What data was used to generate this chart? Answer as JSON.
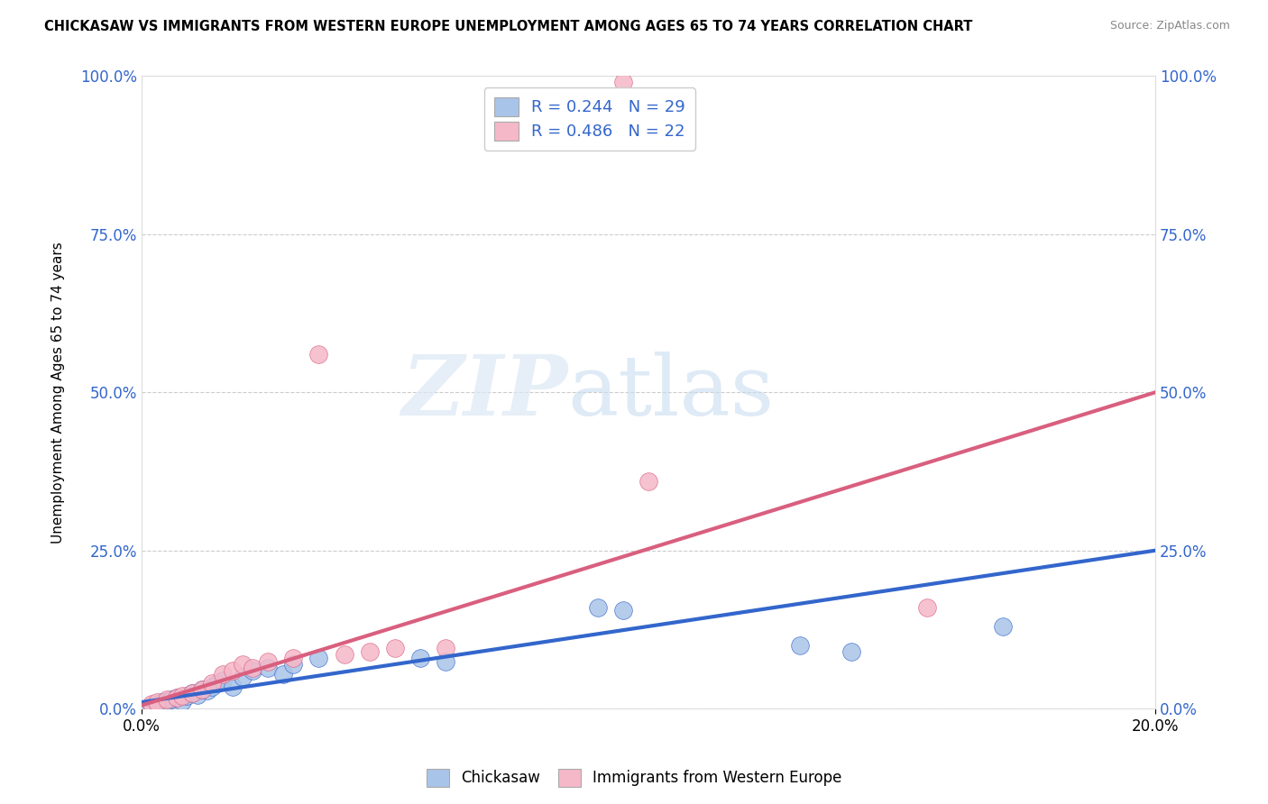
{
  "title": "CHICKASAW VS IMMIGRANTS FROM WESTERN EUROPE UNEMPLOYMENT AMONG AGES 65 TO 74 YEARS CORRELATION CHART",
  "source": "Source: ZipAtlas.com",
  "ylabel": "Unemployment Among Ages 65 to 74 years",
  "legend_label1": "Chickasaw",
  "legend_label2": "Immigrants from Western Europe",
  "R1": 0.244,
  "N1": 29,
  "R2": 0.486,
  "N2": 22,
  "color_blue": "#a8c4e8",
  "color_pink": "#f5b8c8",
  "color_blue_line": "#3366cc",
  "color_pink_line": "#d95f7f",
  "color_axis_text": "#3366cc",
  "watermark_zip": "ZIP",
  "watermark_atlas": "atlas",
  "xlim": [
    0.0,
    0.2
  ],
  "ylim": [
    0.0,
    1.0
  ],
  "yticks": [
    0.0,
    0.25,
    0.5,
    0.75,
    1.0
  ],
  "xticks": [
    0.0,
    0.2
  ],
  "blue_scatter_x": [
    0.002,
    0.003,
    0.004,
    0.005,
    0.006,
    0.007,
    0.008,
    0.009,
    0.01,
    0.011,
    0.012,
    0.013,
    0.014,
    0.015,
    0.016,
    0.018,
    0.02,
    0.022,
    0.025,
    0.028,
    0.03,
    0.035,
    0.055,
    0.06,
    0.09,
    0.095,
    0.13,
    0.14,
    0.17
  ],
  "blue_scatter_y": [
    0.005,
    0.008,
    0.01,
    0.012,
    0.015,
    0.018,
    0.012,
    0.02,
    0.025,
    0.022,
    0.03,
    0.028,
    0.035,
    0.04,
    0.045,
    0.035,
    0.05,
    0.06,
    0.065,
    0.055,
    0.07,
    0.08,
    0.08,
    0.075,
    0.16,
    0.155,
    0.1,
    0.09,
    0.13
  ],
  "pink_scatter_x": [
    0.002,
    0.003,
    0.005,
    0.007,
    0.008,
    0.01,
    0.012,
    0.014,
    0.016,
    0.018,
    0.02,
    0.022,
    0.025,
    0.03,
    0.035,
    0.04,
    0.045,
    0.05,
    0.06,
    0.095,
    0.1,
    0.155
  ],
  "pink_scatter_y": [
    0.008,
    0.01,
    0.015,
    0.018,
    0.02,
    0.025,
    0.03,
    0.04,
    0.055,
    0.06,
    0.07,
    0.065,
    0.075,
    0.08,
    0.56,
    0.085,
    0.09,
    0.095,
    0.095,
    0.99,
    0.36,
    0.16
  ],
  "blue_line_y0": 0.01,
  "blue_line_y1": 0.25,
  "pink_line_y0": 0.005,
  "pink_line_y1": 0.5
}
